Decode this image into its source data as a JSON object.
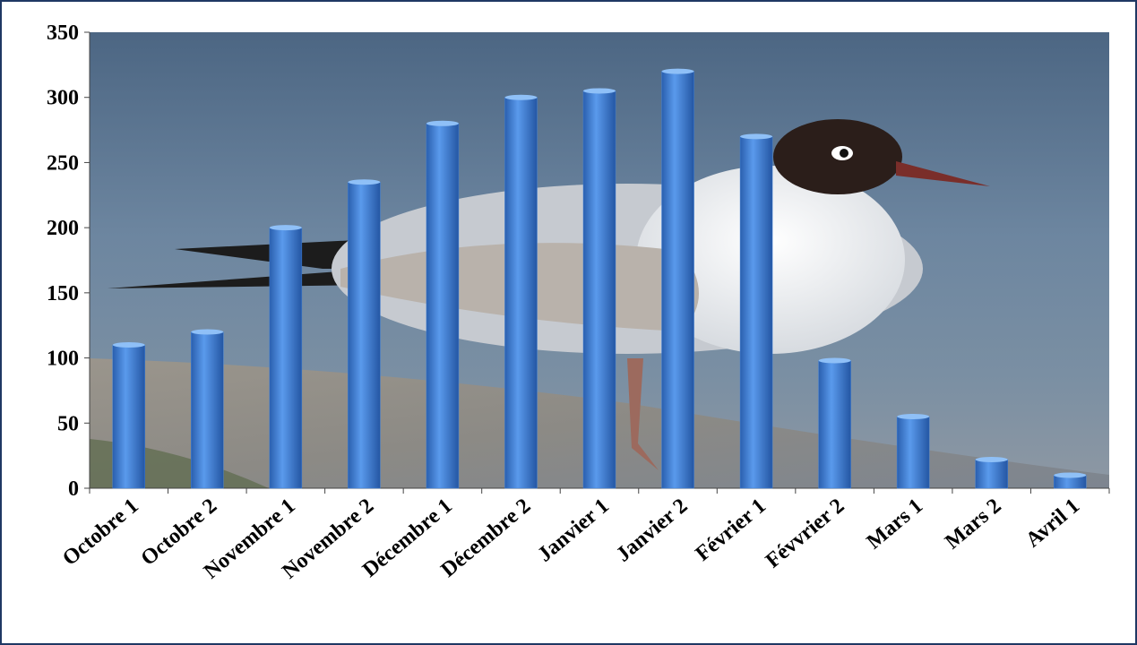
{
  "chart_data": {
    "type": "bar",
    "categories": [
      "Octobre 1",
      "Octobre 2",
      "Novembre 1",
      "Novembre 2",
      "Décembre 1",
      "Décembre 2",
      "Janvier 1",
      "Janvier 2",
      "Février 1",
      "Févvrier 2",
      "Mars 1",
      "Mars 2",
      "Avril 1"
    ],
    "values": [
      110,
      120,
      200,
      235,
      280,
      300,
      305,
      320,
      270,
      98,
      55,
      22,
      10
    ],
    "color": "#3f7fd6",
    "ylim": [
      0,
      350
    ],
    "yticks": [
      0,
      50,
      100,
      150,
      200,
      250,
      300,
      350
    ]
  }
}
